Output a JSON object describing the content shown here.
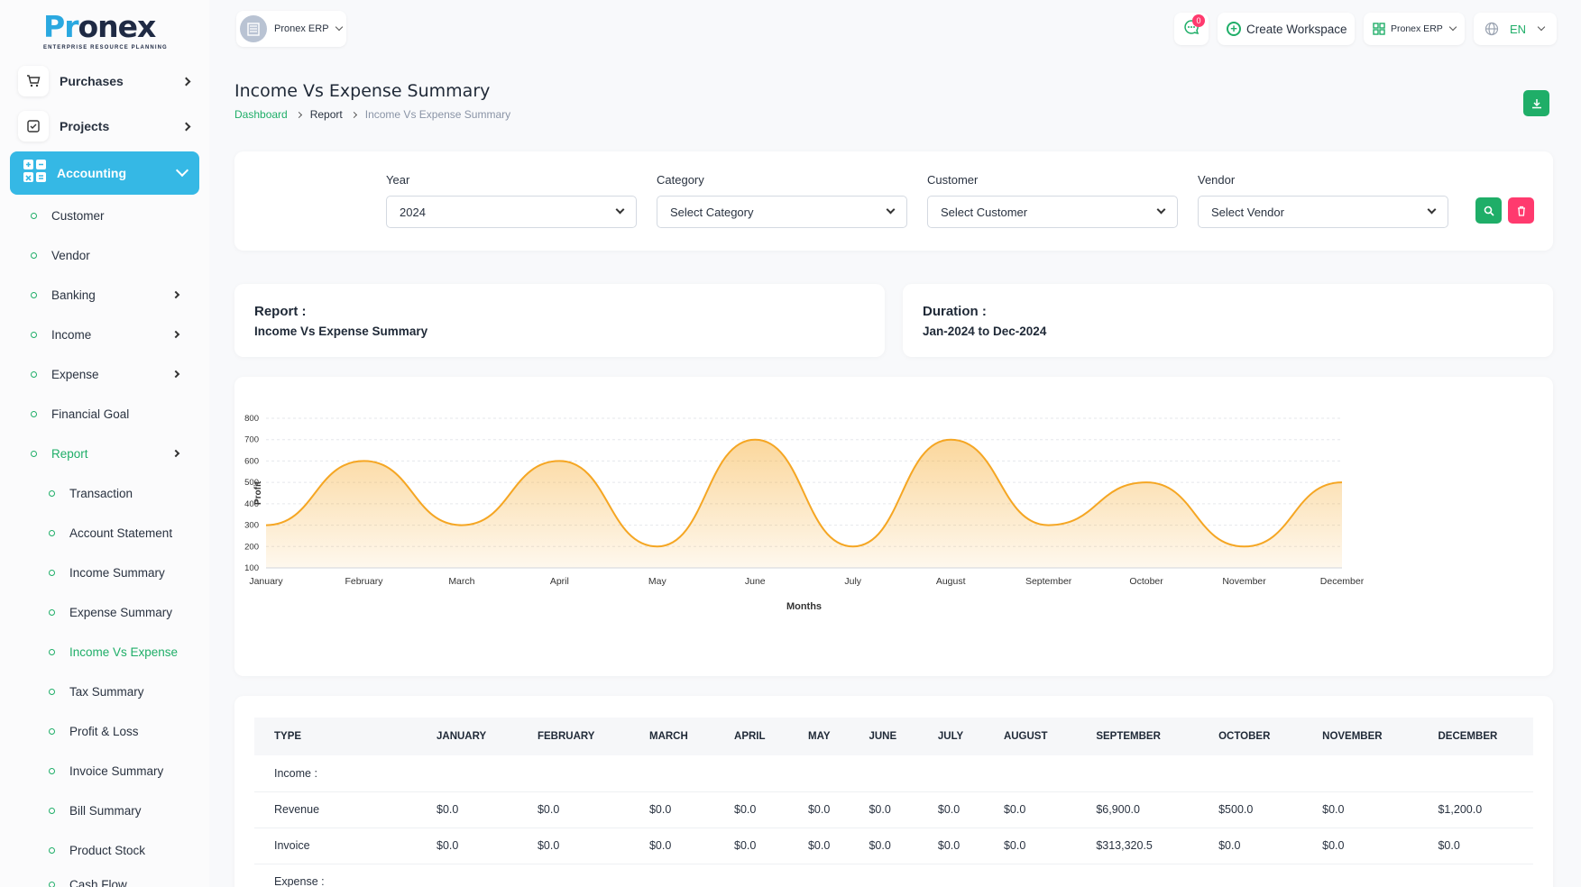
{
  "brand": {
    "name": "Pronex",
    "name_p": "P",
    "name_r": "r",
    "name_rest": "onex",
    "tagline": "ENTERPRISE RESOURCE PLANNING"
  },
  "sidebar": {
    "top_items": [
      {
        "label": "Purchases",
        "icon": "cart-icon"
      },
      {
        "label": "Projects",
        "icon": "checkbox-icon"
      }
    ],
    "accounting": {
      "label": "Accounting",
      "icon": "calculator-icon"
    },
    "sub_items": [
      {
        "label": "Customer"
      },
      {
        "label": "Vendor"
      },
      {
        "label": "Banking"
      },
      {
        "label": "Income"
      },
      {
        "label": "Expense"
      },
      {
        "label": "Financial Goal"
      },
      {
        "label": "Report"
      }
    ],
    "report_items": [
      {
        "label": "Transaction"
      },
      {
        "label": "Account Statement"
      },
      {
        "label": "Income Summary"
      },
      {
        "label": "Expense Summary"
      },
      {
        "label": "Income Vs Expense"
      },
      {
        "label": "Tax Summary"
      },
      {
        "label": "Profit & Loss"
      },
      {
        "label": "Invoice Summary"
      },
      {
        "label": "Bill Summary"
      },
      {
        "label": "Product Stock"
      },
      {
        "label": "Cash Flow"
      }
    ]
  },
  "header": {
    "workspace": "Pronex ERP",
    "message_count": "0",
    "create_workspace": "Create Workspace",
    "erp_label": "Pronex ERP",
    "language": "EN"
  },
  "page": {
    "title": "Income Vs Expense Summary",
    "breadcrumb": [
      "Dashboard",
      "Report",
      "Income Vs Expense Summary"
    ]
  },
  "filters": {
    "year": {
      "label": "Year",
      "value": "2024"
    },
    "category": {
      "label": "Category",
      "value": "Select Category"
    },
    "customer": {
      "label": "Customer",
      "value": "Select Customer"
    },
    "vendor": {
      "label": "Vendor",
      "value": "Select Vendor"
    }
  },
  "report_info": {
    "report_label": "Report :",
    "report_value": "Income Vs Expense Summary",
    "duration_label": "Duration :",
    "duration_value": "Jan-2024 to Dec-2024"
  },
  "chart_data": {
    "type": "area",
    "xlabel": "Months",
    "ylabel": "Profit",
    "ylim": [
      100,
      800
    ],
    "yticks": [
      100,
      200,
      300,
      400,
      500,
      600,
      700,
      800
    ],
    "categories": [
      "January",
      "February",
      "March",
      "April",
      "May",
      "June",
      "July",
      "August",
      "September",
      "October",
      "November",
      "December"
    ],
    "values": [
      300,
      600,
      300,
      600,
      200,
      700,
      200,
      700,
      300,
      500,
      200,
      500
    ],
    "color": "#f5a623",
    "grid": true
  },
  "table": {
    "headers": [
      "TYPE",
      "JANUARY",
      "FEBRUARY",
      "MARCH",
      "APRIL",
      "MAY",
      "JUNE",
      "JULY",
      "AUGUST",
      "SEPTEMBER",
      "OCTOBER",
      "NOVEMBER",
      "DECEMBER"
    ],
    "rows": [
      [
        "Income :",
        "",
        "",
        "",
        "",
        "",
        "",
        "",
        "",
        "",
        "",
        "",
        ""
      ],
      [
        "Revenue",
        "$0.0",
        "$0.0",
        "$0.0",
        "$0.0",
        "$0.0",
        "$0.0",
        "$0.0",
        "$0.0",
        "$6,900.0",
        "$500.0",
        "$0.0",
        "$1,200.0"
      ],
      [
        "Invoice",
        "$0.0",
        "$0.0",
        "$0.0",
        "$0.0",
        "$0.0",
        "$0.0",
        "$0.0",
        "$0.0",
        "$313,320.5",
        "$0.0",
        "$0.0",
        "$0.0"
      ],
      [
        "Expense :",
        "",
        "",
        "",
        "",
        "",
        "",
        "",
        "",
        "",
        "",
        "",
        ""
      ]
    ]
  }
}
